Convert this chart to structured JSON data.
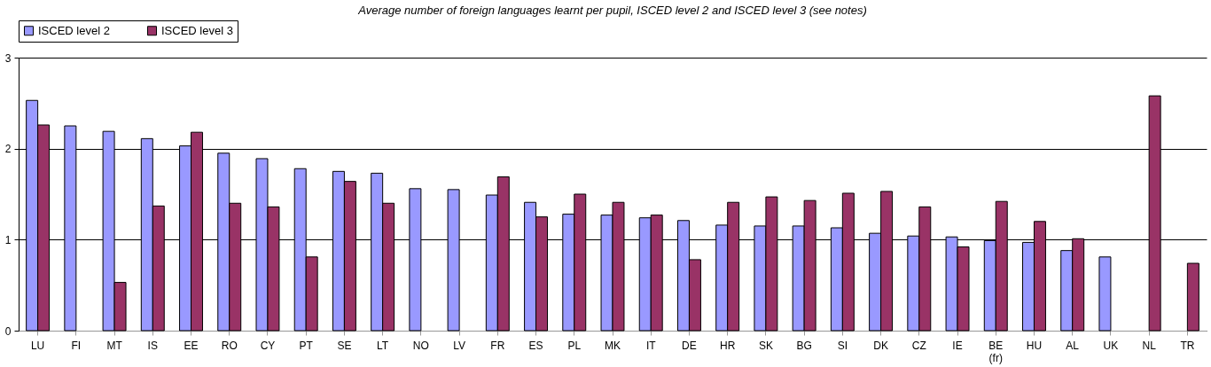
{
  "chart_data": {
    "type": "bar",
    "title": "Average number of foreign languages learnt per pupil, ISCED level 2 and ISCED level 3 (see notes)",
    "categories": [
      "LU",
      "FI",
      "MT",
      "IS",
      "EE",
      "RO",
      "CY",
      "PT",
      "SE",
      "LT",
      "NO",
      "LV",
      "FR",
      "ES",
      "PL",
      "MK",
      "IT",
      "DE",
      "HR",
      "SK",
      "BG",
      "SI",
      "DK",
      "CZ",
      "IE",
      "BE (fr)",
      "HU",
      "AL",
      "UK",
      "NL",
      "TR"
    ],
    "series": [
      {
        "name": "ISCED level 2",
        "color": "#9999ff",
        "values": [
          2.53,
          2.25,
          2.19,
          2.11,
          2.03,
          1.95,
          1.89,
          1.78,
          1.75,
          1.73,
          1.56,
          1.55,
          1.49,
          1.41,
          1.28,
          1.27,
          1.24,
          1.21,
          1.16,
          1.15,
          1.15,
          1.13,
          1.07,
          1.04,
          1.03,
          0.99,
          0.97,
          0.88,
          0.81,
          null,
          null
        ]
      },
      {
        "name": "ISCED level 3",
        "color": "#993366",
        "values": [
          2.26,
          null,
          0.53,
          1.37,
          2.18,
          1.4,
          1.36,
          0.81,
          1.64,
          1.4,
          null,
          null,
          1.69,
          1.25,
          1.5,
          1.41,
          1.27,
          0.78,
          1.41,
          1.47,
          1.43,
          1.51,
          1.53,
          1.36,
          0.92,
          1.42,
          1.2,
          1.01,
          null,
          2.58,
          0.74
        ]
      }
    ],
    "ylim": [
      0,
      3
    ],
    "yticks": [
      0,
      1,
      2,
      3
    ],
    "grid": "y",
    "legend": "top"
  }
}
